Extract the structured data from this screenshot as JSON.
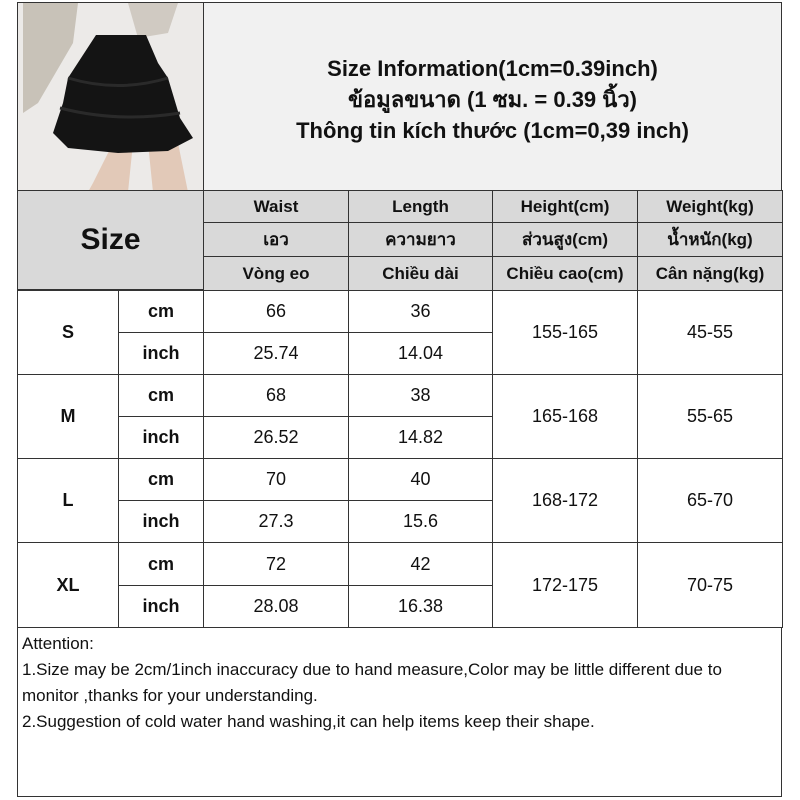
{
  "title_lines": [
    "Size Information(1cm=0.39inch)",
    "ข้อมูลขนาด (1 ซม. = 0.39 นิ้ว)",
    "Thông tin kích thước (1cm=0,39 inch)"
  ],
  "size_label": "Size",
  "columns": [
    {
      "en": "Waist",
      "th": "เอว",
      "vi": "Vòng eo"
    },
    {
      "en": "Length",
      "th": "ความยาว",
      "vi": "Chiều dài"
    },
    {
      "en": "Height(cm)",
      "th": "ส่วนสูง(cm)",
      "vi": "Chiều cao(cm)"
    },
    {
      "en": "Weight(kg)",
      "th": "น้ำหนัก(kg)",
      "vi": "Cân nặng(kg)"
    }
  ],
  "rows": [
    {
      "size": "S",
      "cm_label": "cm",
      "inch_label": "inch",
      "waist_cm": "66",
      "length_cm": "36",
      "waist_in": "25.74",
      "length_in": "14.04",
      "height": "155-165",
      "weight": "45-55"
    },
    {
      "size": "M",
      "cm_label": "cm",
      "inch_label": "inch",
      "waist_cm": "68",
      "length_cm": "38",
      "waist_in": "26.52",
      "length_in": "14.82",
      "height": "165-168",
      "weight": "55-65"
    },
    {
      "size": "L",
      "cm_label": "cm",
      "inch_label": "inch",
      "waist_cm": "70",
      "length_cm": "40",
      "waist_in": "27.3",
      "length_in": "15.6",
      "height": "168-172",
      "weight": "65-70"
    },
    {
      "size": "XL",
      "cm_label": "cm",
      "inch_label": "inch",
      "waist_cm": "72",
      "length_cm": "42",
      "waist_in": "28.08",
      "length_in": "16.38",
      "height": "172-175",
      "weight": "70-75"
    }
  ],
  "attention": {
    "heading": "Attention:",
    "notes": [
      "1.Size may be 2cm/1inch inaccuracy due to hand measure,Color may be little different due to monitor ,thanks for your understanding.",
      "2.Suggestion of cold water hand washing,it can help items keep their shape."
    ]
  }
}
